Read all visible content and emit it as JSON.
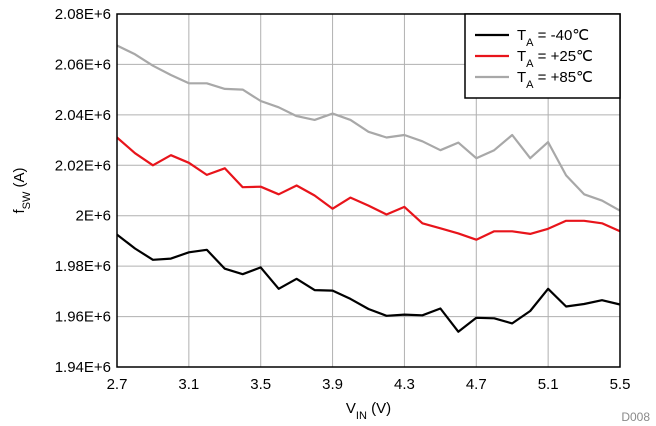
{
  "chart_data": {
    "type": "line",
    "xlabel": {
      "main": "V",
      "sub": "IN",
      "suffix": " (V)"
    },
    "ylabel": {
      "main": "f",
      "sub": "SW",
      "suffix": " (A)"
    },
    "xlim": [
      2.7,
      5.5
    ],
    "ylim": [
      1940000,
      2080000
    ],
    "xticks": [
      {
        "value": 2.7,
        "label": "2.7"
      },
      {
        "value": 3.1,
        "label": "3.1"
      },
      {
        "value": 3.5,
        "label": "3.5"
      },
      {
        "value": 3.9,
        "label": "3.9"
      },
      {
        "value": 4.3,
        "label": "4.3"
      },
      {
        "value": 4.7,
        "label": "4.7"
      },
      {
        "value": 5.1,
        "label": "5.1"
      },
      {
        "value": 5.5,
        "label": "5.5"
      }
    ],
    "yticks": [
      {
        "value": 1940000,
        "label": "1.94E+6"
      },
      {
        "value": 1960000,
        "label": "1.96E+6"
      },
      {
        "value": 1980000,
        "label": "1.98E+6"
      },
      {
        "value": 2000000,
        "label": "2E+6"
      },
      {
        "value": 2020000,
        "label": "2.02E+6"
      },
      {
        "value": 2040000,
        "label": "2.04E+6"
      },
      {
        "value": 2060000,
        "label": "2.06E+6"
      },
      {
        "value": 2080000,
        "label": "2.08E+6"
      }
    ],
    "grid": true,
    "legend_position": "top-right",
    "x": [
      2.7,
      2.8,
      2.9,
      3.0,
      3.1,
      3.2,
      3.3,
      3.4,
      3.5,
      3.6,
      3.7,
      3.8,
      3.9,
      4.0,
      4.1,
      4.2,
      4.3,
      4.4,
      4.5,
      4.6,
      4.7,
      4.8,
      4.9,
      5.0,
      5.1,
      5.2,
      5.3,
      5.4,
      5.5
    ],
    "series": [
      {
        "name": {
          "main": "T",
          "sub": "A",
          "suffix": " = -40℃"
        },
        "color": "#000000",
        "values": [
          1992500,
          1987000,
          1982500,
          1983000,
          1985500,
          1986500,
          1979000,
          1976800,
          1979500,
          1971000,
          1975000,
          1970500,
          1970300,
          1967000,
          1963000,
          1960300,
          1960800,
          1960500,
          1963200,
          1954000,
          1959500,
          1959300,
          1957300,
          1962200,
          1971000,
          1964000,
          1965000,
          1966500,
          1964800
        ]
      },
      {
        "name": {
          "main": "T",
          "sub": "A",
          "suffix": " = +25℃"
        },
        "color": "#e8141b",
        "values": [
          2031000,
          2024800,
          2020000,
          2024000,
          2021000,
          2016200,
          2018800,
          2011300,
          2011500,
          2008500,
          2012000,
          2008000,
          2002800,
          2007200,
          2004000,
          2000500,
          2003500,
          1997000,
          1995000,
          1993000,
          1990500,
          1993800,
          1993800,
          1992800,
          1994800,
          1998000,
          1998000,
          1997000,
          1993800
        ]
      },
      {
        "name": {
          "main": "T",
          "sub": "A",
          "suffix": " = +85℃"
        },
        "color": "#a8a8a8",
        "values": [
          2067500,
          2064000,
          2059500,
          2055800,
          2052500,
          2052500,
          2050300,
          2050000,
          2045500,
          2043000,
          2039500,
          2038000,
          2040500,
          2038000,
          2033300,
          2031000,
          2032000,
          2029500,
          2026000,
          2029000,
          2022800,
          2026000,
          2032000,
          2022800,
          2029200,
          2016000,
          2008500,
          2006000,
          2002000
        ]
      }
    ]
  },
  "footer": {
    "code": "D008"
  }
}
